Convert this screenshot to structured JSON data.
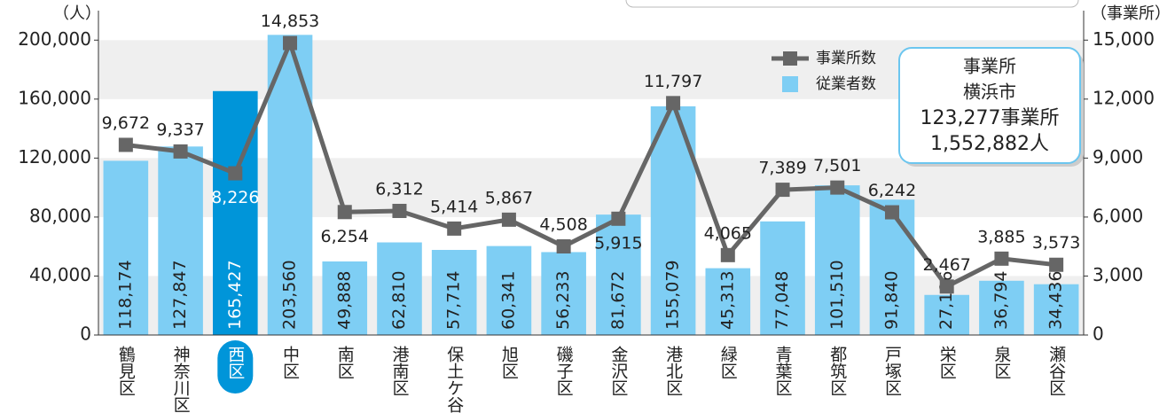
{
  "chart_data": {
    "type": "bar-line",
    "y_label": "（人）",
    "y2_label": "（事業所）",
    "categories": [
      "鶴見区",
      "神奈川区",
      "西区",
      "中区",
      "南区",
      "港南区",
      "保土ケ谷区",
      "旭区",
      "磯子区",
      "金沢区",
      "港北区",
      "緑区",
      "青葉区",
      "都筑区",
      "戸塚区",
      "栄区",
      "泉区",
      "瀬谷区"
    ],
    "series": [
      {
        "name": "従業者数",
        "type": "bar",
        "color": "#7ecef4",
        "colors": [
          "#7ecef4",
          "#7ecef4",
          "#0095d9",
          "#7ecef4",
          "#7ecef4",
          "#7ecef4",
          "#7ecef4",
          "#7ecef4",
          "#7ecef4",
          "#7ecef4",
          "#7ecef4",
          "#7ecef4",
          "#7ecef4",
          "#7ecef4",
          "#7ecef4",
          "#7ecef4",
          "#7ecef4",
          "#7ecef4"
        ],
        "values": [
          118174,
          127847,
          165427,
          203560,
          49888,
          62810,
          57714,
          60341,
          56233,
          81672,
          155079,
          45313,
          77048,
          101510,
          91840,
          27196,
          36794,
          34436
        ],
        "value_labels": [
          "118,174",
          "127,847",
          "165,427",
          "203,560",
          "49,888",
          "62,810",
          "57,714",
          "60,341",
          "56,233",
          "81,672",
          "155,079",
          "45,313",
          "77,048",
          "101,510",
          "91,840",
          "27,196",
          "36,794",
          "34,436"
        ]
      },
      {
        "name": "事業所数",
        "type": "line",
        "axis": "y2",
        "color": "#666666",
        "values": [
          9672,
          9337,
          8226,
          14853,
          6254,
          6312,
          5414,
          5867,
          4508,
          5915,
          11797,
          4065,
          7389,
          7501,
          6242,
          2467,
          3885,
          3573
        ],
        "value_labels": [
          "9,672",
          "9,337",
          "8,226",
          "14,853",
          "6,254",
          "6,312",
          "5,414",
          "5,867",
          "4,508",
          "5,915",
          "11,797",
          "4,065",
          "7,389",
          "7,501",
          "6,242",
          "2,467",
          "3,885",
          "3,573"
        ]
      }
    ],
    "ylim": [
      0,
      220000
    ],
    "yticks": [
      0,
      {
        "value": 40000,
        "label": "40,000"
      },
      {
        "value": 80000,
        "label": "80,000"
      },
      {
        "value": 120000,
        "label": "120,000"
      },
      {
        "value": 160000,
        "label": "160,000"
      },
      {
        "value": 200000,
        "label": "200,000"
      }
    ],
    "y2lim": [
      0,
      16500
    ],
    "y2ticks": [
      0,
      {
        "value": 3000,
        "label": "3,000"
      },
      {
        "value": 6000,
        "label": "6,000"
      },
      {
        "value": 9000,
        "label": "9,000"
      },
      {
        "value": 12000,
        "label": "12,000"
      },
      {
        "value": 15000,
        "label": "15,000"
      }
    ],
    "grid": "bands",
    "summary": {
      "lines": [
        "事業所",
        "横浜市",
        "123,277事業所",
        "1,552,882人"
      ]
    }
  }
}
